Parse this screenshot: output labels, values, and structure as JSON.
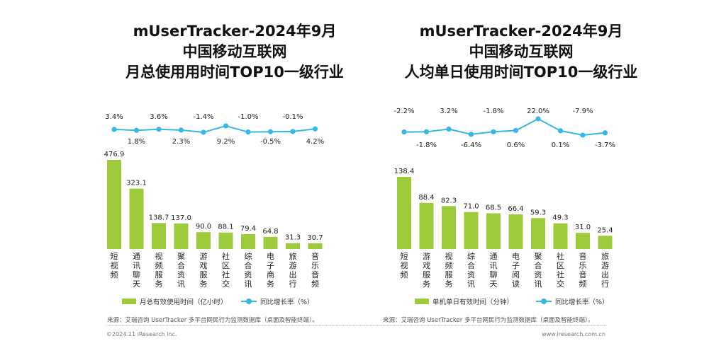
{
  "colors": {
    "bar": "#9ecb3c",
    "line": "#35b7e8",
    "text": "#111111"
  },
  "chart_data": [
    {
      "type": "bar",
      "title": [
        "mUserTracker-2024年9月",
        "中国移动互联网",
        "月总使用用时间TOP10一级行业"
      ],
      "categories": [
        "短视频",
        "通讯聊天",
        "视频服务",
        "聚合资讯",
        "游戏服务",
        "社区社交",
        "综合资讯",
        "电子商务",
        "旅游出行",
        "音乐音频"
      ],
      "series": [
        {
          "name": "月总有效使用时间（亿小时）",
          "type": "bar",
          "values": [
            476.9,
            323.1,
            138.7,
            137.0,
            90.0,
            88.1,
            79.4,
            64.8,
            31.3,
            30.7
          ],
          "labels": [
            "476.9",
            "323.1",
            "138.7",
            "137.0",
            "90.0",
            "88.1",
            "79.4",
            "64.8",
            "31.3",
            "30.7"
          ]
        },
        {
          "name": "同比增长率（%）",
          "type": "line",
          "values": [
            3.4,
            1.8,
            3.6,
            2.3,
            -1.4,
            9.2,
            -1.0,
            -0.5,
            -0.1,
            4.2
          ],
          "labels": [
            "3.4%",
            "1.8%",
            "3.6%",
            "2.3%",
            "-1.4%",
            "9.2%",
            "-1.0%",
            "-0.5%",
            "-0.1%",
            "4.2%"
          ]
        }
      ],
      "legend": "bottom"
    },
    {
      "type": "bar",
      "title": [
        "mUserTracker-2024年9月",
        "中国移动互联网",
        "人均单日使用时间TOP10一级行业"
      ],
      "categories": [
        "短视频",
        "游戏服务",
        "视频服务",
        "综合资讯",
        "通讯聊天",
        "电子阅读",
        "聚合资讯",
        "社区社交",
        "音乐音频",
        "旅游出行"
      ],
      "series": [
        {
          "name": "单机单日有效时间（分钟）",
          "type": "bar",
          "values": [
            138.4,
            88.4,
            82.3,
            71.0,
            68.5,
            66.4,
            59.3,
            49.3,
            31.0,
            25.4
          ],
          "labels": [
            "138.4",
            "88.4",
            "82.3",
            "71.0",
            "68.5",
            "66.4",
            "59.3",
            "49.3",
            "31.0",
            "25.4"
          ]
        },
        {
          "name": "同比增长率（%）",
          "type": "line",
          "values": [
            -2.2,
            -1.8,
            3.2,
            -6.4,
            -1.8,
            0.6,
            22.0,
            0.1,
            -7.9,
            -3.7
          ],
          "labels": [
            "-2.2%",
            "-1.8%",
            "3.2%",
            "-6.4%",
            "-1.8%",
            "0.6%",
            "22.0%",
            "0.1%",
            "-7.9%",
            "-3.7%"
          ]
        }
      ],
      "legend": "bottom"
    }
  ],
  "source": {
    "left": "来源：艾瑞咨询 UserTracker 多平台网民行为监测数据库（桌面及智能终端）。",
    "right": "来源：艾瑞咨询 UserTracker 多平台网民行为监测数据库（桌面及智能终端）。"
  },
  "footer": {
    "copyright": "©2024.11 iResearch Inc.",
    "website": "www.iresearch.com.cn"
  }
}
